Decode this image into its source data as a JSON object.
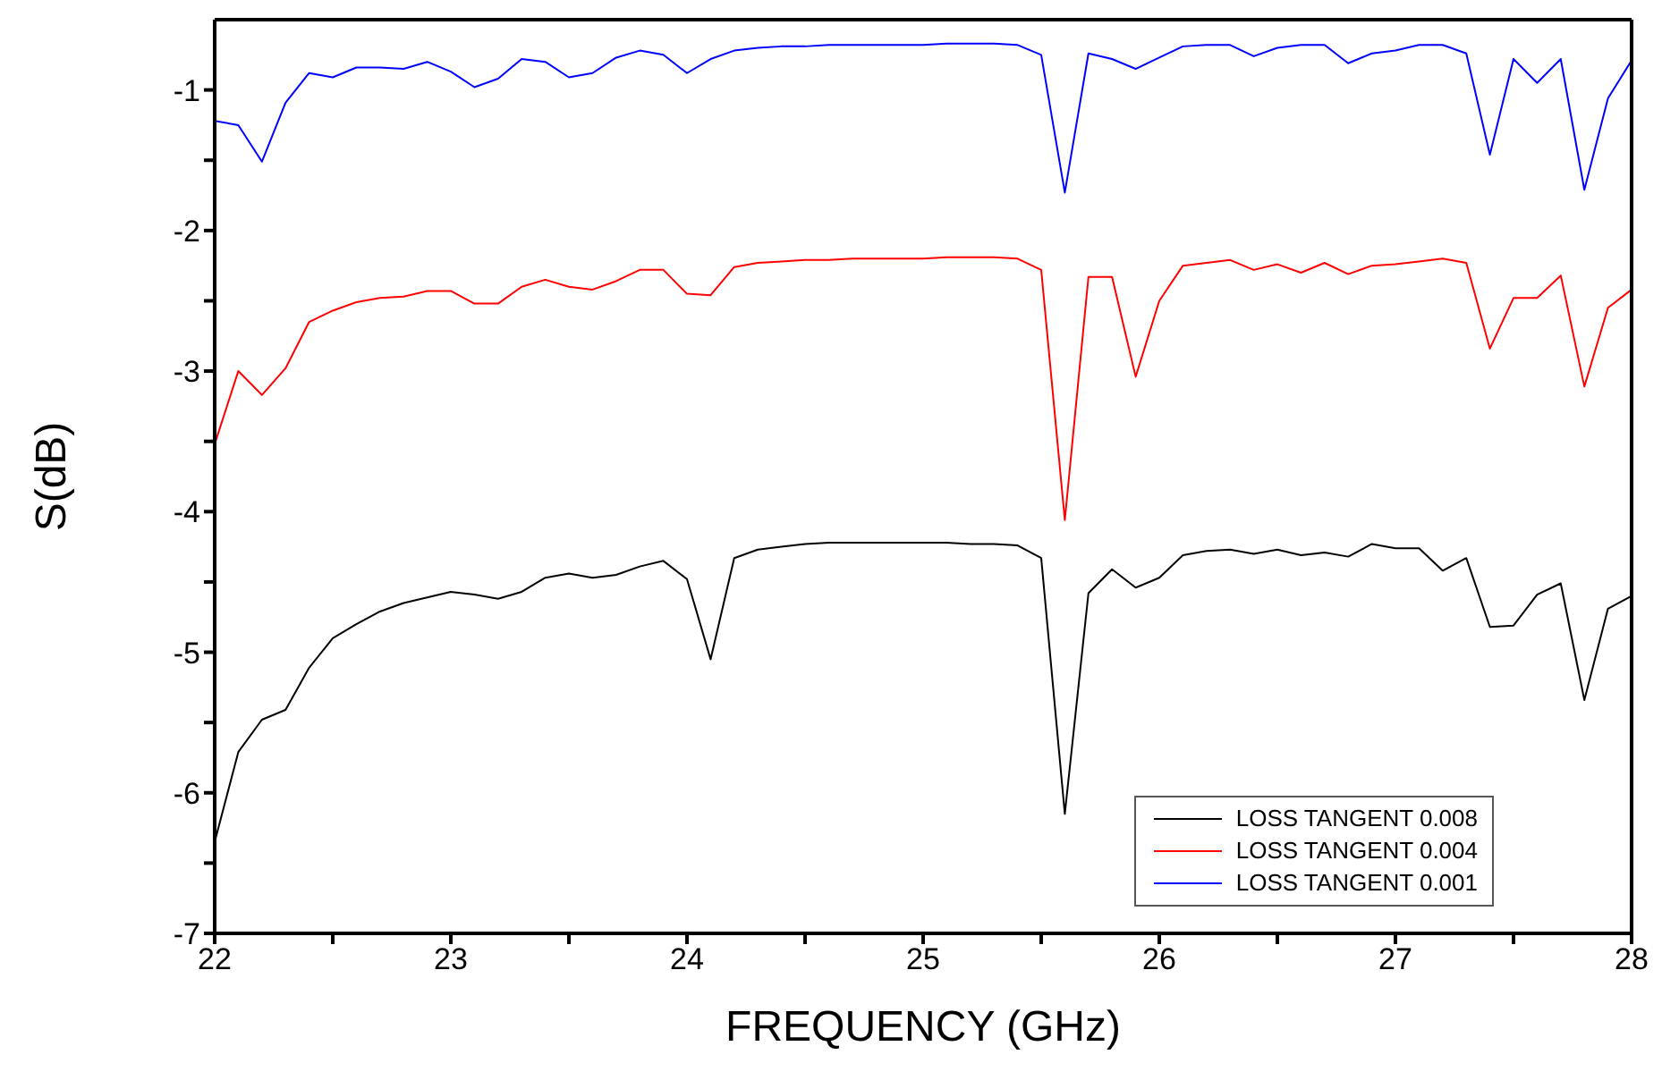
{
  "chart_data": {
    "type": "line",
    "xlabel": "FREQUENCY (GHz)",
    "ylabel": "S(dB)",
    "x": [
      22,
      22.1,
      22.2,
      22.3,
      22.4,
      22.5,
      22.6,
      22.7,
      22.8,
      22.9,
      23,
      23.1,
      23.2,
      23.3,
      23.4,
      23.5,
      23.6,
      23.7,
      23.8,
      23.9,
      24,
      24.1,
      24.2,
      24.3,
      24.4,
      24.5,
      24.6,
      24.7,
      24.8,
      24.9,
      25,
      25.1,
      25.2,
      25.3,
      25.4,
      25.5,
      25.6,
      25.7,
      25.8,
      25.9,
      26,
      26.1,
      26.2,
      26.3,
      26.4,
      26.5,
      26.6,
      26.7,
      26.8,
      26.9,
      27,
      27.1,
      27.2,
      27.3,
      27.4,
      27.5,
      27.6,
      27.7,
      27.8,
      27.9,
      28
    ],
    "series": [
      {
        "name": "LOSS TANGENT 0.008",
        "color": "#000000",
        "values": [
          -6.35,
          -5.71,
          -5.48,
          -5.41,
          -5.11,
          -4.9,
          -4.8,
          -4.71,
          -4.65,
          -4.61,
          -4.57,
          -4.59,
          -4.62,
          -4.57,
          -4.47,
          -4.44,
          -4.47,
          -4.45,
          -4.39,
          -4.35,
          -4.48,
          -5.05,
          -4.33,
          -4.27,
          -4.25,
          -4.23,
          -4.22,
          -4.22,
          -4.22,
          -4.22,
          -4.22,
          -4.22,
          -4.23,
          -4.23,
          -4.24,
          -4.33,
          -6.15,
          -4.58,
          -4.41,
          -4.54,
          -4.47,
          -4.31,
          -4.28,
          -4.27,
          -4.3,
          -4.27,
          -4.31,
          -4.29,
          -4.32,
          -4.23,
          -4.26,
          -4.26,
          -4.42,
          -4.33,
          -4.82,
          -4.81,
          -4.59,
          -4.51,
          -5.34,
          -4.69,
          -4.6
        ]
      },
      {
        "name": "LOSS TANGENT 0.004",
        "color": "#ff0000",
        "values": [
          -3.52,
          -3.0,
          -3.17,
          -2.98,
          -2.65,
          -2.57,
          -2.51,
          -2.48,
          -2.47,
          -2.43,
          -2.43,
          -2.52,
          -2.52,
          -2.4,
          -2.35,
          -2.4,
          -2.42,
          -2.36,
          -2.28,
          -2.28,
          -2.45,
          -2.46,
          -2.26,
          -2.23,
          -2.22,
          -2.21,
          -2.21,
          -2.2,
          -2.2,
          -2.2,
          -2.2,
          -2.19,
          -2.19,
          -2.19,
          -2.2,
          -2.28,
          -4.06,
          -2.33,
          -2.33,
          -3.04,
          -2.5,
          -2.25,
          -2.23,
          -2.21,
          -2.28,
          -2.24,
          -2.3,
          -2.23,
          -2.31,
          -2.25,
          -2.24,
          -2.22,
          -2.2,
          -2.23,
          -2.84,
          -2.48,
          -2.48,
          -2.32,
          -3.11,
          -2.55,
          -2.42
        ]
      },
      {
        "name": "LOSS TANGENT 0.001",
        "color": "#0000ff",
        "values": [
          -1.22,
          -1.25,
          -1.51,
          -1.09,
          -0.88,
          -0.91,
          -0.84,
          -0.84,
          -0.85,
          -0.8,
          -0.87,
          -0.98,
          -0.92,
          -0.78,
          -0.8,
          -0.91,
          -0.88,
          -0.77,
          -0.72,
          -0.75,
          -0.88,
          -0.78,
          -0.72,
          -0.7,
          -0.69,
          -0.69,
          -0.68,
          -0.68,
          -0.68,
          -0.68,
          -0.68,
          -0.67,
          -0.67,
          -0.67,
          -0.68,
          -0.75,
          -1.73,
          -0.74,
          -0.78,
          -0.85,
          -0.77,
          -0.69,
          -0.68,
          -0.68,
          -0.76,
          -0.7,
          -0.68,
          -0.68,
          -0.81,
          -0.74,
          -0.72,
          -0.68,
          -0.68,
          -0.74,
          -1.46,
          -0.78,
          -0.95,
          -0.78,
          -1.71,
          -1.06,
          -0.79
        ]
      }
    ],
    "xlim": [
      22,
      28
    ],
    "xticks": [
      22,
      {
        "value": 22.5,
        "label": null
      },
      23,
      {
        "value": 23.5,
        "label": null
      },
      24,
      {
        "value": 24.5,
        "label": null
      },
      25,
      {
        "value": 25.5,
        "label": null
      },
      26,
      {
        "value": 26.5,
        "label": null
      },
      27,
      {
        "value": 27.5,
        "label": null
      },
      28
    ],
    "ylim": [
      -7,
      -0.5
    ],
    "yticks": [
      -7,
      {
        "value": -6.5,
        "label": null
      },
      -6,
      {
        "value": -5.5,
        "label": null
      },
      -5,
      {
        "value": -4.5,
        "label": null
      },
      -4,
      {
        "value": -3.5,
        "label": null
      },
      -3,
      {
        "value": -2.5,
        "label": null
      },
      -2,
      {
        "value": -1.5,
        "label": null
      },
      -1
    ],
    "grid": false,
    "legend": "bottom right",
    "marker": "none",
    "line_style": "solid"
  }
}
